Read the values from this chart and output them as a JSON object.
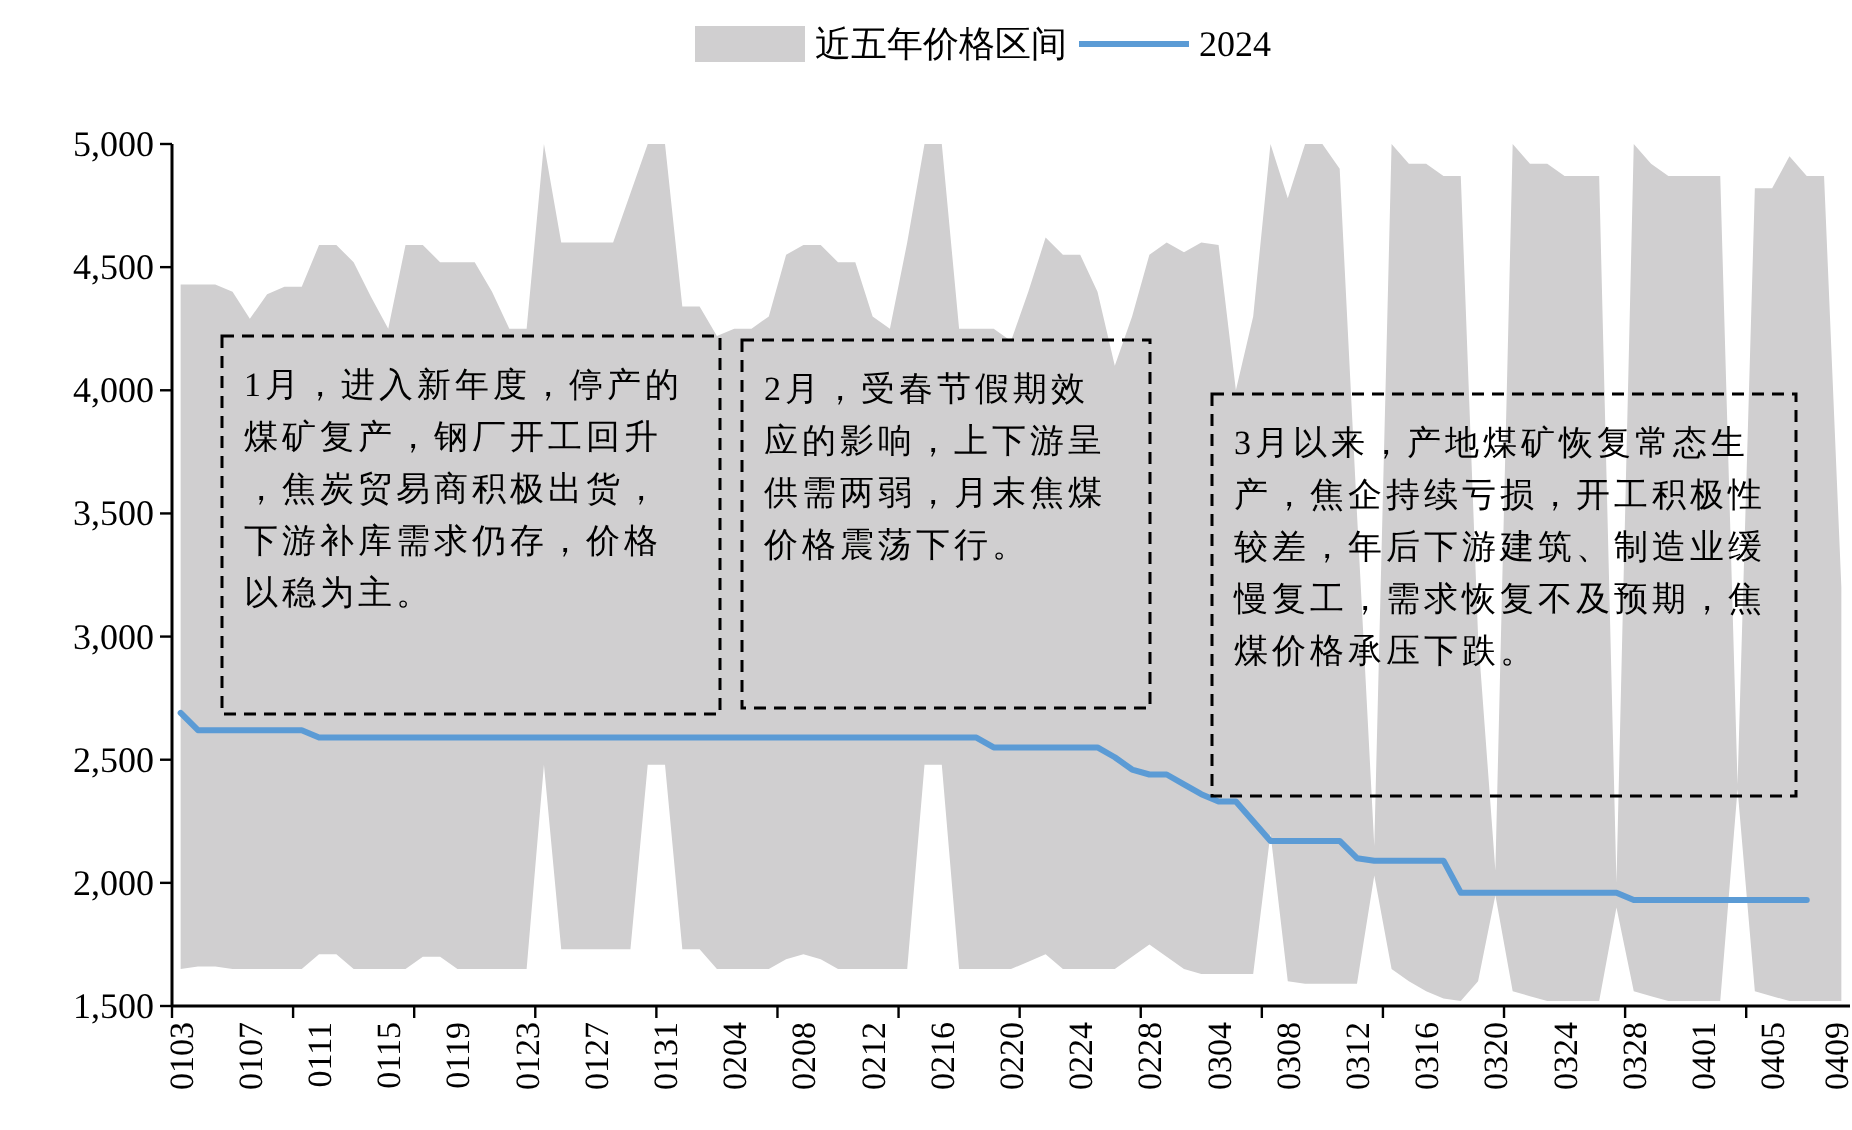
{
  "chart_data": {
    "type": "line",
    "categories": [
      "0103",
      null,
      null,
      null,
      "0107",
      null,
      null,
      null,
      "0111",
      null,
      null,
      null,
      "0115",
      null,
      null,
      null,
      "0119",
      null,
      null,
      null,
      "0123",
      null,
      null,
      null,
      "0127",
      null,
      null,
      null,
      "0131",
      null,
      null,
      null,
      "0204",
      null,
      null,
      null,
      "0208",
      null,
      null,
      null,
      "0212",
      null,
      null,
      null,
      "0216",
      null,
      null,
      null,
      "0220",
      null,
      null,
      null,
      "0224",
      null,
      null,
      null,
      "0228",
      null,
      null,
      null,
      "0304",
      null,
      null,
      null,
      "0308",
      null,
      null,
      null,
      "0312",
      null,
      null,
      null,
      "0316",
      null,
      null,
      null,
      "0320",
      null,
      null,
      null,
      "0324",
      null,
      null,
      null,
      "0328",
      null,
      null,
      null,
      "0401",
      null,
      null,
      null,
      "0405",
      null,
      null,
      null,
      "0409"
    ],
    "series": [
      {
        "name": "近五年价格区间",
        "type": "area",
        "color": "#d0cfd0",
        "values": [
          null,
          null,
          null,
          null,
          null,
          null,
          null,
          null,
          null,
          null,
          null,
          null,
          null,
          null,
          null,
          null,
          null,
          null,
          null,
          null,
          null,
          null,
          null,
          null,
          null,
          null,
          null,
          null,
          null,
          null,
          null,
          null,
          null,
          null,
          null,
          null,
          null,
          null,
          null,
          null,
          null,
          null,
          null,
          null,
          null,
          null,
          null,
          null,
          null,
          null,
          null,
          null,
          null,
          null,
          null,
          null,
          null,
          null,
          null,
          null,
          null,
          null,
          null,
          null,
          null,
          null,
          null,
          null,
          null,
          null,
          null,
          null,
          null,
          null,
          null,
          null,
          null,
          null,
          null,
          null,
          null,
          null,
          null,
          null,
          null,
          null,
          null,
          null,
          null,
          null,
          null,
          null,
          null,
          null,
          null,
          null,
          null
        ],
        "upper": [
          4430,
          4430,
          4430,
          4400,
          4290,
          4390,
          4420,
          4420,
          4590,
          4590,
          4520,
          4380,
          4250,
          4590,
          4590,
          4520,
          4520,
          4520,
          4400,
          4250,
          4250,
          5000,
          4600,
          4600,
          4600,
          4600,
          4800,
          5000,
          5000,
          4340,
          4340,
          4220,
          4250,
          4250,
          4300,
          4550,
          4590,
          4590,
          4520,
          4520,
          4300,
          4250,
          4600,
          5000,
          5000,
          4250,
          4250,
          4250,
          4200,
          4400,
          4620,
          4550,
          4550,
          4400,
          4100,
          4300,
          4550,
          4600,
          4560,
          4600,
          4590,
          4000,
          4300,
          5000,
          4780,
          5000,
          5000,
          4900,
          3500,
          2150,
          5000,
          4920,
          4920,
          4870,
          4870,
          3000,
          2050,
          5000,
          4920,
          4920,
          4870,
          4870,
          4870,
          2000,
          5000,
          4920,
          4870,
          4870,
          4870,
          4870,
          2400,
          4820,
          4820,
          4950,
          4870,
          4870,
          3200
        ],
        "lower": [
          1650,
          1660,
          1660,
          1650,
          1650,
          1650,
          1650,
          1650,
          1710,
          1710,
          1650,
          1650,
          1650,
          1650,
          1700,
          1700,
          1650,
          1650,
          1650,
          1650,
          1650,
          2480,
          1730,
          1730,
          1730,
          1730,
          1730,
          2480,
          2480,
          1730,
          1730,
          1650,
          1650,
          1650,
          1650,
          1690,
          1710,
          1690,
          1650,
          1650,
          1650,
          1650,
          1650,
          2480,
          2480,
          1650,
          1650,
          1650,
          1650,
          1680,
          1710,
          1650,
          1650,
          1650,
          1650,
          1700,
          1750,
          1700,
          1650,
          1630,
          1630,
          1630,
          1630,
          2200,
          1600,
          1590,
          1590,
          1590,
          1590,
          2030,
          1650,
          1600,
          1560,
          1530,
          1520,
          1600,
          1950,
          1560,
          1540,
          1520,
          1520,
          1520,
          1520,
          1900,
          1560,
          1540,
          1520,
          1520,
          1520,
          1520,
          2380,
          1560,
          1540,
          1520,
          1520,
          1520,
          1520
        ]
      },
      {
        "name": "2024",
        "color": "#5b9bd5",
        "values": [
          2690,
          2620,
          2620,
          2620,
          2620,
          2620,
          2620,
          2620,
          2590,
          2590,
          2590,
          2590,
          2590,
          2590,
          2590,
          2590,
          2590,
          2590,
          2590,
          2590,
          2590,
          2590,
          2590,
          2590,
          2590,
          2590,
          2590,
          2590,
          2590,
          2590,
          2590,
          2590,
          2590,
          2590,
          2590,
          2590,
          2590,
          2590,
          2590,
          2590,
          2590,
          2590,
          2590,
          2590,
          2590,
          2590,
          2590,
          2550,
          2550,
          2550,
          2550,
          2550,
          2550,
          2550,
          2510,
          2460,
          2440,
          2440,
          2400,
          2360,
          2330,
          2330,
          2250,
          2170,
          2170,
          2170,
          2170,
          2170,
          2100,
          2090,
          2090,
          2090,
          2090,
          2090,
          1960,
          1960,
          1960,
          1960,
          1960,
          1960,
          1960,
          1960,
          1960,
          1960,
          1930,
          1930,
          1930,
          1930,
          1930,
          1930,
          1930,
          1930,
          1930,
          1930,
          1930,
          null,
          null
        ]
      }
    ],
    "ylim": [
      1500,
      5000
    ],
    "yticks": [
      {
        "value": 1500,
        "label": "1,500"
      },
      {
        "value": 2000,
        "label": "2,000"
      },
      {
        "value": 2500,
        "label": "2,500"
      },
      {
        "value": 3000,
        "label": "3,000"
      },
      {
        "value": 3500,
        "label": "3,500"
      },
      {
        "value": 4000,
        "label": "4,000"
      },
      {
        "value": 4500,
        "label": "4,500"
      },
      {
        "value": 5000,
        "label": "5,000"
      }
    ],
    "grid": false,
    "legend": "top",
    "marker": "none",
    "line_style": "solid",
    "annotations": [
      "1月，进入新年度，停产的煤矿复产，钢厂开工回升，焦炭贸易商积极出货，下游补库需求仍存，价格以稳为主。",
      "2月，受春节假期效应的影响，上下游呈供需两弱，月末焦煤价格震荡下行。",
      "3月以来，产地煤矿恢复常态生产，焦企持续亏损，开工积极性较差，年后下游建筑、制造业缓慢复工，需求恢复不及预期，焦煤价格承压下跌。"
    ]
  }
}
